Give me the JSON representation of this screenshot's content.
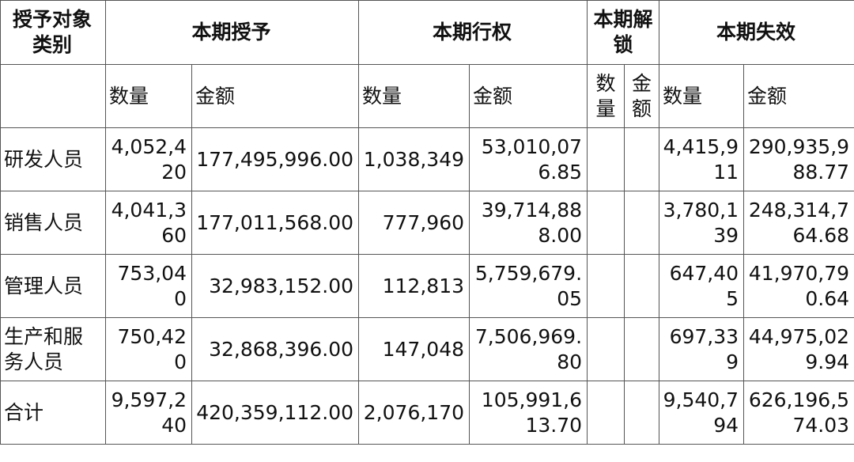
{
  "header": {
    "category": "授予对象类别",
    "groups": [
      "本期授予",
      "本期行权",
      "本期解锁",
      "本期失效"
    ],
    "sub": [
      "数量",
      "金额",
      "数量",
      "金额",
      "数量",
      "金额",
      "数量",
      "金额"
    ]
  },
  "rows": [
    {
      "label": "研发人员",
      "values": [
        "4,052,420",
        "177,495,996.00",
        "1,038,349",
        "53,010,076.85",
        "",
        "",
        "4,415,911",
        "290,935,988.77"
      ]
    },
    {
      "label": "销售人员",
      "values": [
        "4,041,360",
        "177,011,568.00",
        "777,960",
        "39,714,888.00",
        "",
        "",
        "3,780,139",
        "248,314,764.68"
      ]
    },
    {
      "label": "管理人员",
      "values": [
        "753,040",
        "32,983,152.00",
        "112,813",
        "5,759,679.05",
        "",
        "",
        "647,405",
        "41,970,790.64"
      ]
    },
    {
      "label": "生产和服务人员",
      "values": [
        "750,420",
        "32,868,396.00",
        "147,048",
        "7,506,969.80",
        "",
        "",
        "697,339",
        "44,975,029.94"
      ]
    },
    {
      "label": "合计",
      "values": [
        "9,597,240",
        "420,359,112.00",
        "2,076,170",
        "105,991,613.70",
        "",
        "",
        "9,540,794",
        "626,196,574.03"
      ]
    }
  ]
}
